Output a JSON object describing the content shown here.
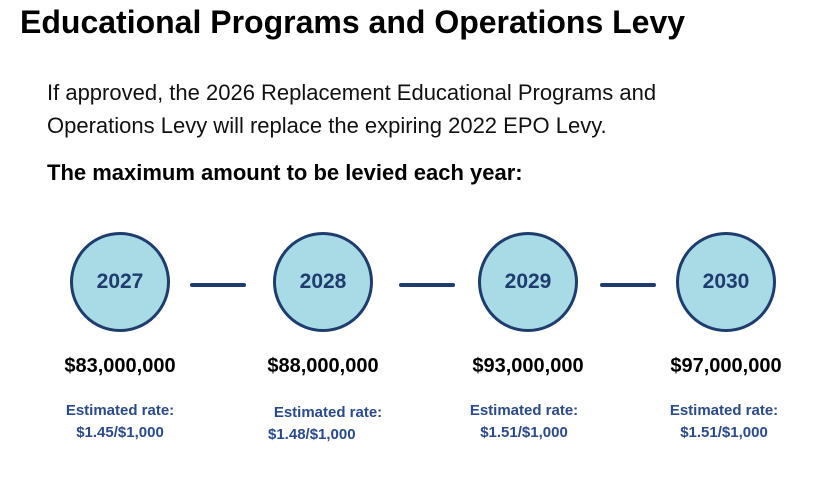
{
  "title": "Educational Programs and Operations Levy",
  "intro": {
    "line1": "If approved, the 2026 Replacement Educational Programs and",
    "line2": "Operations Levy will replace the expiring 2022 EPO Levy."
  },
  "subheading": "The maximum amount to be levied each year:",
  "years": [
    {
      "year": "2027",
      "amount": "$83,000,000",
      "rate_label": "Estimated rate:",
      "rate": "$1.45/$1,000"
    },
    {
      "year": "2028",
      "amount": "$88,000,000",
      "rate_label": "Estimated rate:",
      "rate": "$1.48/$1,000"
    },
    {
      "year": "2029",
      "amount": "$93,000,000",
      "rate_label": "Estimated rate:",
      "rate": "$1.51/$1,000"
    },
    {
      "year": "2030",
      "amount": "$97,000,000",
      "rate_label": "Estimated rate:",
      "rate": "$1.51/$1,000"
    }
  ],
  "colors": {
    "circle_fill": "#a8dbe6",
    "accent": "#1e3d6e",
    "rate_text": "#2a4a8a"
  }
}
